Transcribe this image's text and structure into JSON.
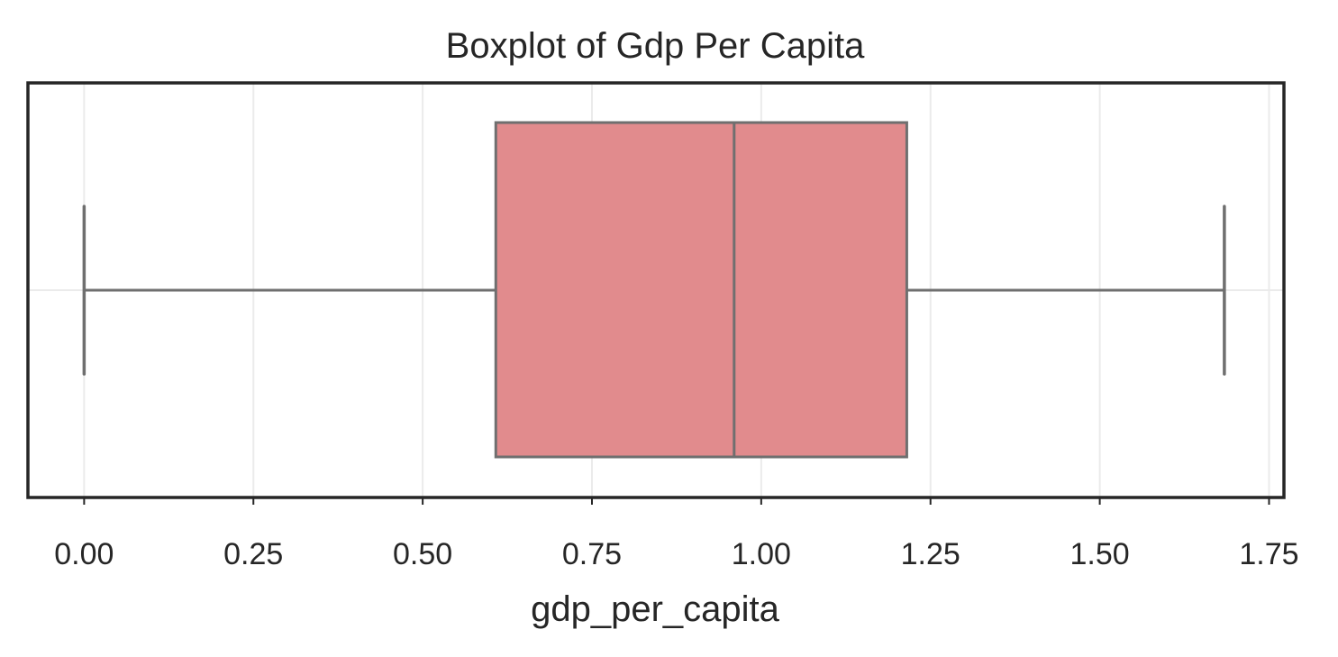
{
  "chart_data": {
    "type": "boxplot",
    "title": "Boxplot of Gdp Per Capita",
    "xlabel": "gdp_per_capita",
    "ylabel": "",
    "xlim": [
      -0.083,
      1.772
    ],
    "x_ticks": [
      0.0,
      0.25,
      0.5,
      0.75,
      1.0,
      1.25,
      1.5,
      1.75
    ],
    "x_tick_labels": [
      "0.00",
      "0.25",
      "0.50",
      "0.75",
      "1.00",
      "1.25",
      "1.50",
      "1.75"
    ],
    "grid": true,
    "box": {
      "whisker_low": 0.0,
      "q1": 0.608,
      "median": 0.96,
      "q3": 1.215,
      "whisker_high": 1.684
    },
    "colors": {
      "box_fill": "#e18b8d",
      "box_line": "#6f6f6f",
      "frame": "#262626",
      "grid": "#ebebeb"
    }
  }
}
